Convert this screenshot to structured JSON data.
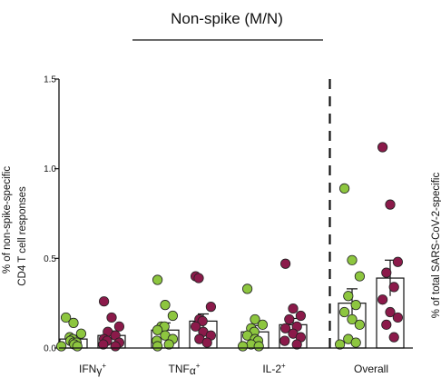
{
  "chart_data": {
    "type": "scatter",
    "title": "Non-spike (M/N)",
    "ylabel_left": "CD4 T cell responses",
    "ylabel_left_secondary": "% of non-spike-specific",
    "ylabel_right": "% of total SARS-CoV-2-specific",
    "ylim": [
      0,
      1.5
    ],
    "yticks": [
      "0.0",
      "0.5",
      "1.0",
      "1.5"
    ],
    "categories": [
      "IFNγ+",
      "TNFα+",
      "IL-2+",
      "Overall"
    ],
    "category_labels": [
      {
        "base": "IFN",
        "mid": "γ",
        "sup": "+"
      },
      {
        "base": "TNF",
        "mid": "α",
        "sup": "+"
      },
      {
        "base": "IL-2",
        "mid": "",
        "sup": "+"
      },
      {
        "base": "Overall",
        "mid": "",
        "sup": ""
      }
    ],
    "series": [
      {
        "color": "#8dc63f",
        "means": [
          0.05,
          0.1,
          0.09,
          0.25
        ],
        "sem": [
          0.02,
          0.04,
          0.035,
          0.08
        ],
        "points": [
          [
            0.17,
            0.14,
            0.08,
            0.06,
            0.05,
            0.04,
            0.03,
            0.03,
            0.02,
            0.01,
            0.01
          ],
          [
            0.38,
            0.24,
            0.18,
            0.12,
            0.12,
            0.1,
            0.07,
            0.05,
            0.04,
            0.02,
            0.01
          ],
          [
            0.33,
            0.16,
            0.13,
            0.11,
            0.09,
            0.07,
            0.05,
            0.04,
            0.02,
            0.01,
            0.01
          ],
          [
            0.89,
            0.49,
            0.4,
            0.29,
            0.24,
            0.2,
            0.16,
            0.13,
            0.05,
            0.03,
            0.02
          ]
        ]
      },
      {
        "color": "#8b1a4a",
        "means": [
          0.07,
          0.15,
          0.13,
          0.39
        ],
        "sem": [
          0.025,
          0.04,
          0.035,
          0.1
        ],
        "points": [
          [
            0.26,
            0.17,
            0.12,
            0.09,
            0.07,
            0.05,
            0.04,
            0.03,
            0.02,
            0.01
          ],
          [
            0.4,
            0.39,
            0.23,
            0.16,
            0.15,
            0.12,
            0.09,
            0.07,
            0.05,
            0.03
          ],
          [
            0.47,
            0.22,
            0.18,
            0.16,
            0.12,
            0.11,
            0.08,
            0.06,
            0.04,
            0.02
          ],
          [
            1.12,
            0.8,
            0.48,
            0.42,
            0.34,
            0.27,
            0.2,
            0.17,
            0.13,
            0.06
          ]
        ]
      }
    ],
    "divider_after_category": 2,
    "grid": false,
    "legend": "none"
  }
}
